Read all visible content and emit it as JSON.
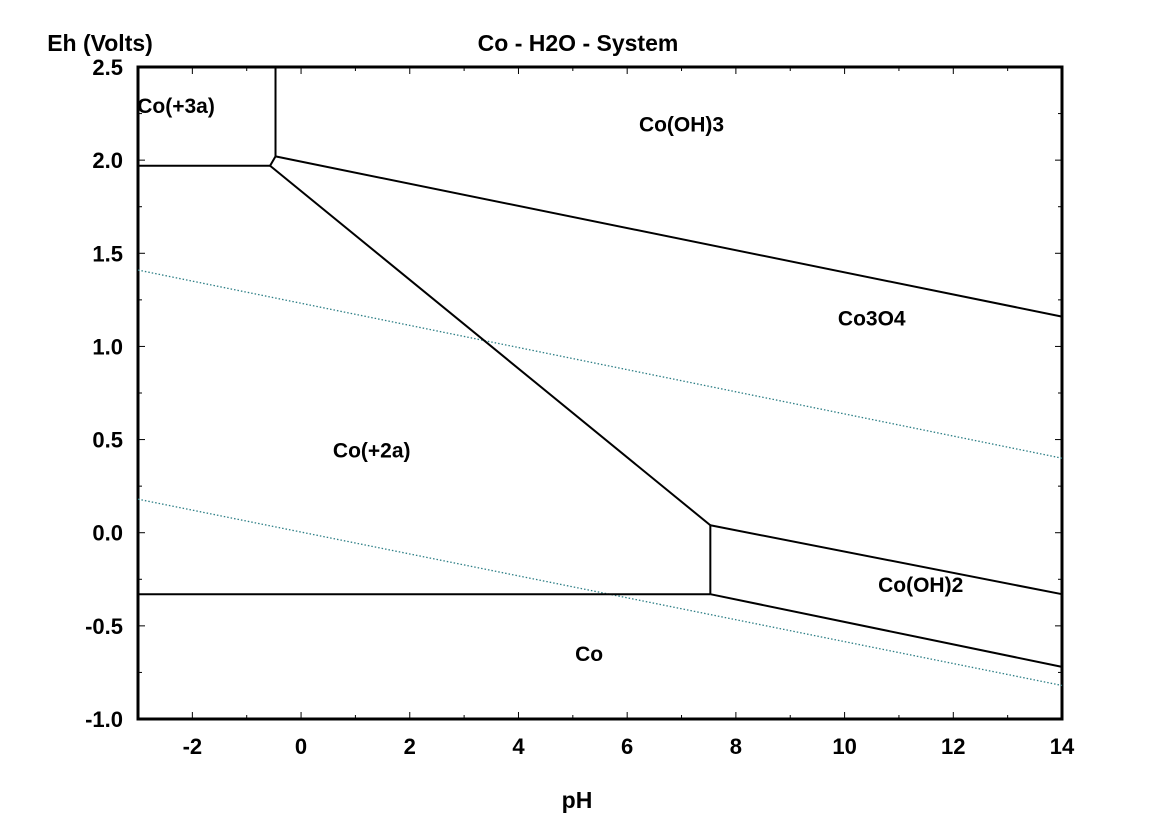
{
  "chart_data": {
    "type": "line",
    "title": "Co - H2O - System",
    "xlabel": "pH",
    "ylabel": "Eh (Volts)",
    "xlim": [
      -3,
      14
    ],
    "ylim": [
      -1.0,
      2.5
    ],
    "x_ticks": [
      -2,
      0,
      2,
      4,
      6,
      8,
      10,
      12,
      14
    ],
    "x_tick_labels": [
      "-2",
      "0",
      "2",
      "4",
      "6",
      "8",
      "10",
      "12",
      "14"
    ],
    "y_ticks": [
      -1.0,
      -0.5,
      0.0,
      0.5,
      1.0,
      1.5,
      2.0,
      2.5
    ],
    "y_tick_labels": [
      "-1.0",
      "-0.5",
      "0.0",
      "0.5",
      "1.0",
      "1.5",
      "2.0",
      "2.5"
    ],
    "grid": false,
    "boundaries": [
      {
        "points": [
          [
            -3,
            1.97
          ],
          [
            -0.57,
            1.97
          ]
        ]
      },
      {
        "points": [
          [
            -0.57,
            1.97
          ],
          [
            -0.47,
            2.02
          ]
        ]
      },
      {
        "points": [
          [
            -0.47,
            2.02
          ],
          [
            -0.47,
            2.5
          ]
        ]
      },
      {
        "points": [
          [
            -0.47,
            2.02
          ],
          [
            14,
            1.16
          ]
        ]
      },
      {
        "points": [
          [
            -0.57,
            1.97
          ],
          [
            7.53,
            0.04
          ]
        ]
      },
      {
        "points": [
          [
            7.53,
            0.04
          ],
          [
            7.53,
            -0.33
          ]
        ]
      },
      {
        "points": [
          [
            7.53,
            0.04
          ],
          [
            14,
            -0.33
          ]
        ]
      },
      {
        "points": [
          [
            -3,
            -0.33
          ],
          [
            7.53,
            -0.33
          ]
        ]
      },
      {
        "points": [
          [
            7.53,
            -0.33
          ],
          [
            14,
            -0.72
          ]
        ]
      }
    ],
    "water_lines": [
      {
        "points": [
          [
            -3,
            1.41
          ],
          [
            14,
            0.4
          ]
        ]
      },
      {
        "points": [
          [
            -3,
            0.18
          ],
          [
            14,
            -0.82
          ]
        ]
      }
    ],
    "line_color": "#000000",
    "water_line_color": "#2e7f86",
    "regions": [
      {
        "label": "Co(+3a)",
        "x": -2.3,
        "y": 2.29
      },
      {
        "label": "Co(OH)3",
        "x": 7.0,
        "y": 2.19
      },
      {
        "label": "Co3O4",
        "x": 10.5,
        "y": 1.15
      },
      {
        "label": "Co(+2a)",
        "x": 1.3,
        "y": 0.44
      },
      {
        "label": "Co(OH)2",
        "x": 11.4,
        "y": -0.28
      },
      {
        "label": "Co",
        "x": 5.3,
        "y": -0.65
      }
    ]
  }
}
